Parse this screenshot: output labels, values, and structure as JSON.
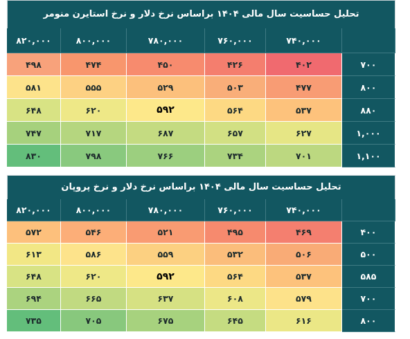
{
  "table1": {
    "title": "تحلیل حساسیت سال مالی ۱۴۰۴ براساس نرخ دلار و نرخ استایرن منومر",
    "columns": [
      "۸۲۰,۰۰۰",
      "۸۰۰,۰۰۰",
      "۷۸۰,۰۰۰",
      "۷۶۰,۰۰۰",
      "۷۴۰,۰۰۰",
      ""
    ],
    "rows": [
      {
        "label": "۷۰۰",
        "values": [
          "۴۹۸",
          "۴۷۴",
          "۴۵۰",
          "۴۲۶",
          "۴۰۲"
        ],
        "colors": [
          "#f8a27b",
          "#f8966d",
          "#f78b6e",
          "#f47e6e",
          "#f06a6f"
        ]
      },
      {
        "label": "۸۰۰",
        "values": [
          "۵۸۱",
          "۵۵۵",
          "۵۲۹",
          "۵۰۳",
          "۴۷۷"
        ],
        "colors": [
          "#fde38b",
          "#fdd183",
          "#fcc07c",
          "#f9ae79",
          "#f89c74"
        ]
      },
      {
        "label": "۸۸۰",
        "values": [
          "۶۴۸",
          "۶۲۰",
          "۵۹۲",
          "۵۶۴",
          "۵۳۷"
        ],
        "colors": [
          "#d8e384",
          "#eee887",
          "#fde88a",
          "#fdd983",
          "#fdc27c"
        ]
      },
      {
        "label": "۱,۰۰۰",
        "values": [
          "۷۴۷",
          "۷۱۷",
          "۶۸۷",
          "۶۵۷",
          "۶۲۷"
        ],
        "colors": [
          "#a6d17d",
          "#b5d67f",
          "#c4db81",
          "#d2e083",
          "#e6e685"
        ]
      },
      {
        "label": "۱,۱۰۰",
        "values": [
          "۸۳۰",
          "۷۹۸",
          "۷۶۶",
          "۷۳۴",
          "۷۰۱"
        ],
        "colors": [
          "#63be7b",
          "#89c97e",
          "#9ccf7f",
          "#abd37f",
          "#bcd880"
        ]
      }
    ],
    "highlight": {
      "row": 2,
      "col": 2
    }
  },
  "table2": {
    "title": "تحلیل حساسیت سال مالی ۱۴۰۴ براساس نرخ دلار و نرخ پروپان",
    "columns": [
      "۸۲۰,۰۰۰",
      "۸۰۰,۰۰۰",
      "۷۸۰,۰۰۰",
      "۷۶۰,۰۰۰",
      "۷۴۰,۰۰۰",
      ""
    ],
    "rows": [
      {
        "label": "۴۰۰",
        "values": [
          "۵۷۲",
          "۵۴۶",
          "۵۲۱",
          "۴۹۵",
          "۴۶۹"
        ],
        "colors": [
          "#fdc07c",
          "#fcae78",
          "#f99b72",
          "#f68a6e",
          "#f47f6f"
        ]
      },
      {
        "label": "۵۰۰",
        "values": [
          "۶۱۳",
          "۵۸۶",
          "۵۵۹",
          "۵۳۲",
          "۵۰۶"
        ],
        "colors": [
          "#f2e785",
          "#fde38b",
          "#fcd081",
          "#fbbd7b",
          "#f9ab76"
        ]
      },
      {
        "label": "۵۸۵",
        "values": [
          "۶۴۸",
          "۶۲۰",
          "۵۹۲",
          "۵۶۴",
          "۵۳۷"
        ],
        "colors": [
          "#d8e384",
          "#eee887",
          "#fde88a",
          "#fdd983",
          "#fdc27c"
        ]
      },
      {
        "label": "۷۰۰",
        "values": [
          "۶۹۴",
          "۶۶۵",
          "۶۳۷",
          "۶۰۸",
          "۵۷۹"
        ],
        "colors": [
          "#abd37f",
          "#c1da81",
          "#d6e183",
          "#ece787",
          "#fde28a"
        ]
      },
      {
        "label": "۸۰۰",
        "values": [
          "۷۳۵",
          "۷۰۵",
          "۶۷۵",
          "۶۴۵",
          "۶۱۶"
        ],
        "colors": [
          "#63be7b",
          "#88c87d",
          "#a7d27e",
          "#c5dc81",
          "#ebe786"
        ]
      }
    ],
    "highlight": {
      "row": 2,
      "col": 2
    }
  }
}
